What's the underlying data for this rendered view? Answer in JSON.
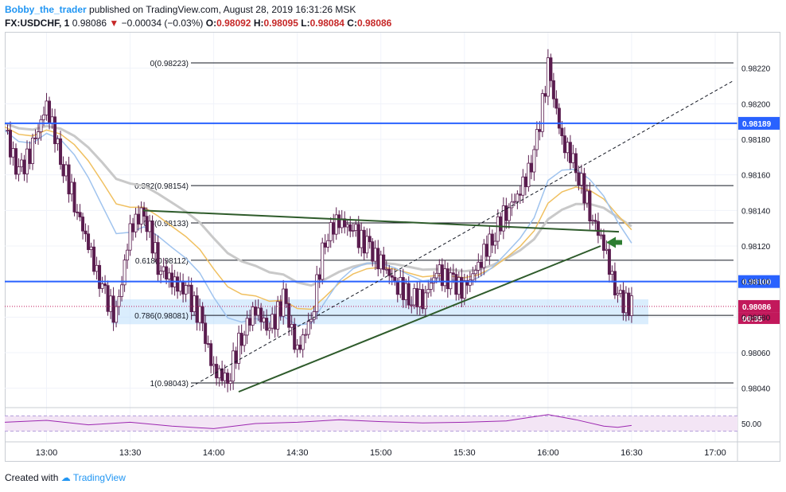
{
  "header": {
    "author": "Bobby_the_trader",
    "published_text": "published on TradingView.com, August 28, 2019 16:31:26 MSK",
    "symbol": "FX:USDCHF, 1",
    "last": "0.98086",
    "arrow": "▼",
    "change": "−0.00034 (−0.03%)",
    "o_label": "O:",
    "o": "0.98092",
    "h_label": "H:",
    "h": "0.98095",
    "l_label": "L:",
    "l": "0.98084",
    "c_label": "C:",
    "c": "0.98086"
  },
  "price_axis": {
    "ticks": [
      "0.98220",
      "0.98200",
      "0.98180",
      "0.98160",
      "0.98140",
      "0.98120",
      "0.98100",
      "0.98080",
      "0.98060",
      "0.98040"
    ],
    "tags": [
      {
        "text": "0.98189",
        "color": "#2962ff"
      },
      {
        "text": "0.98100",
        "color": "#2962ff"
      },
      {
        "text": "0.98086",
        "color": "#c2185b"
      },
      {
        "text": "00:35",
        "color": "#c2185b"
      }
    ]
  },
  "time_axis": {
    "ticks": [
      "13:00",
      "13:30",
      "14:00",
      "14:30",
      "15:00",
      "15:30",
      "16:00",
      "16:30",
      "17:00"
    ]
  },
  "fib_levels": [
    {
      "label": "0(0.98223)"
    },
    {
      "label": "0.382(0.98154)"
    },
    {
      "label": "0.5(0.98133)"
    },
    {
      "label": "0.618(0.98112)"
    },
    {
      "label": "0.786(0.98081)"
    },
    {
      "label": "1(0.98043)"
    }
  ],
  "rsi": {
    "tick": "50.00"
  },
  "colors": {
    "up_candle": "#ffffff",
    "down_candle": "#5a1d4f",
    "horizontal_line": "#2962ff",
    "trendline": "#2e5b2b",
    "ma_gray": "#c9c9c9",
    "ma_orange": "#f0c060",
    "ma_blue": "#9fc3ee",
    "rsi_line": "#9c27b0",
    "zone": "#bbdefb"
  },
  "chart_data": {
    "type": "candlestick",
    "symbol": "FX:USDCHF",
    "interval": "1",
    "ylim": [
      0.9803,
      0.9824
    ],
    "x_ticks": [
      "13:00",
      "13:30",
      "14:00",
      "14:30",
      "15:00",
      "15:30",
      "16:00",
      "16:30",
      "17:00"
    ],
    "y_ticks": [
      0.9822,
      0.982,
      0.9818,
      0.9816,
      0.9814,
      0.9812,
      0.981,
      0.9808,
      0.9806,
      0.9804
    ],
    "horizontal_lines": [
      0.98189,
      0.981
    ],
    "close_path": [
      [
        "12:45",
        0.98185
      ],
      [
        "12:50",
        0.9816
      ],
      [
        "12:55",
        0.98175
      ],
      [
        "13:00",
        0.982
      ],
      [
        "13:05",
        0.9817
      ],
      [
        "13:10",
        0.98145
      ],
      [
        "13:15",
        0.9812
      ],
      [
        "13:20",
        0.98095
      ],
      [
        "13:25",
        0.9808
      ],
      [
        "13:30",
        0.9813
      ],
      [
        "13:35",
        0.9814
      ],
      [
        "13:40",
        0.9811
      ],
      [
        "13:45",
        0.981
      ],
      [
        "13:50",
        0.98095
      ],
      [
        "13:55",
        0.9808
      ],
      [
        "14:00",
        0.9805
      ],
      [
        "14:05",
        0.98045
      ],
      [
        "14:10",
        0.9807
      ],
      [
        "14:15",
        0.98085
      ],
      [
        "14:20",
        0.98072
      ],
      [
        "14:25",
        0.9809
      ],
      [
        "14:30",
        0.9806
      ],
      [
        "14:35",
        0.9808
      ],
      [
        "14:40",
        0.98125
      ],
      [
        "14:45",
        0.98135
      ],
      [
        "14:50",
        0.98128
      ],
      [
        "14:55",
        0.9812
      ],
      [
        "15:00",
        0.9811
      ],
      [
        "15:05",
        0.981
      ],
      [
        "15:10",
        0.98092
      ],
      [
        "15:15",
        0.9809
      ],
      [
        "15:20",
        0.98105
      ],
      [
        "15:25",
        0.981
      ],
      [
        "15:30",
        0.98095
      ],
      [
        "15:35",
        0.9811
      ],
      [
        "15:40",
        0.98125
      ],
      [
        "15:45",
        0.9814
      ],
      [
        "15:50",
        0.9815
      ],
      [
        "15:55",
        0.9817
      ],
      [
        "16:00",
        0.9822
      ],
      [
        "16:05",
        0.9818
      ],
      [
        "16:10",
        0.98165
      ],
      [
        "16:15",
        0.9814
      ],
      [
        "16:20",
        0.9812
      ],
      [
        "16:25",
        0.9809
      ],
      [
        "16:30",
        0.98086
      ]
    ],
    "rsi_ylim": [
      30,
      70
    ],
    "rsi_path": [
      [
        "12:45",
        52
      ],
      [
        "13:00",
        55
      ],
      [
        "13:15",
        48
      ],
      [
        "13:30",
        52
      ],
      [
        "13:45",
        46
      ],
      [
        "14:00",
        42
      ],
      [
        "14:15",
        50
      ],
      [
        "14:30",
        52
      ],
      [
        "14:45",
        56
      ],
      [
        "15:00",
        53
      ],
      [
        "15:15",
        51
      ],
      [
        "15:30",
        52
      ],
      [
        "15:45",
        54
      ],
      [
        "16:00",
        64
      ],
      [
        "16:10",
        56
      ],
      [
        "16:20",
        46
      ],
      [
        "16:25",
        44
      ],
      [
        "16:30",
        47
      ]
    ]
  }
}
